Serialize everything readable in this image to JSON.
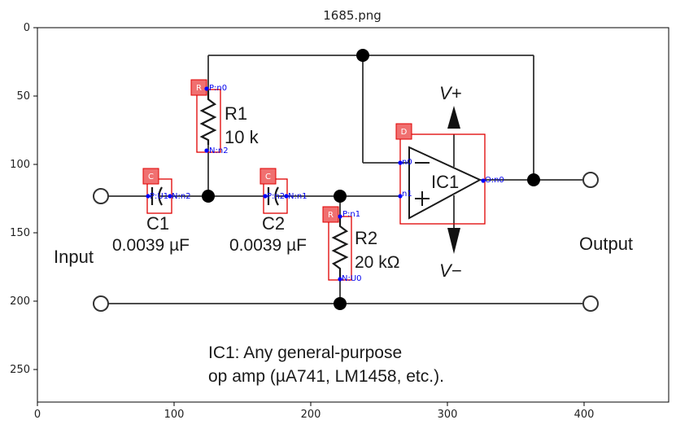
{
  "title": "1685.png",
  "axes": {
    "x_ticks": [
      "0",
      "100",
      "200",
      "300",
      "400"
    ],
    "y_ticks": [
      "0",
      "50",
      "100",
      "150",
      "200",
      "250"
    ]
  },
  "schematic": {
    "r1": {
      "name": "R1",
      "value": "10 k"
    },
    "r2": {
      "name": "R2",
      "value": "20 kΩ"
    },
    "c1": {
      "name": "C1",
      "value": "0.0039 µF"
    },
    "c2": {
      "name": "C2",
      "value": "0.0039 µF"
    },
    "ic1": "IC1",
    "vplus": "V+",
    "vminus": "V−",
    "input": "Input",
    "output": "Output",
    "note_line1": "IC1: Any general-purpose",
    "note_line2": "op amp (µA741, LM1458, etc.)."
  },
  "annotations": {
    "r1": {
      "letter": "R",
      "pin_top": "P:n0",
      "pin_bottom": "N:n2"
    },
    "c1": {
      "letter": "C",
      "pin_left": "P:U1",
      "pin_right": "N:n2"
    },
    "c2": {
      "letter": "C",
      "pin_left": "P:n2",
      "pin_right": "N:n1"
    },
    "r2": {
      "letter": "R",
      "pin_top": "P:n1",
      "pin_bottom": "N:U0"
    },
    "ic": {
      "letter": "D",
      "pin_minus": "n0",
      "pin_plus": "n1",
      "pin_out": "O:n0"
    }
  }
}
